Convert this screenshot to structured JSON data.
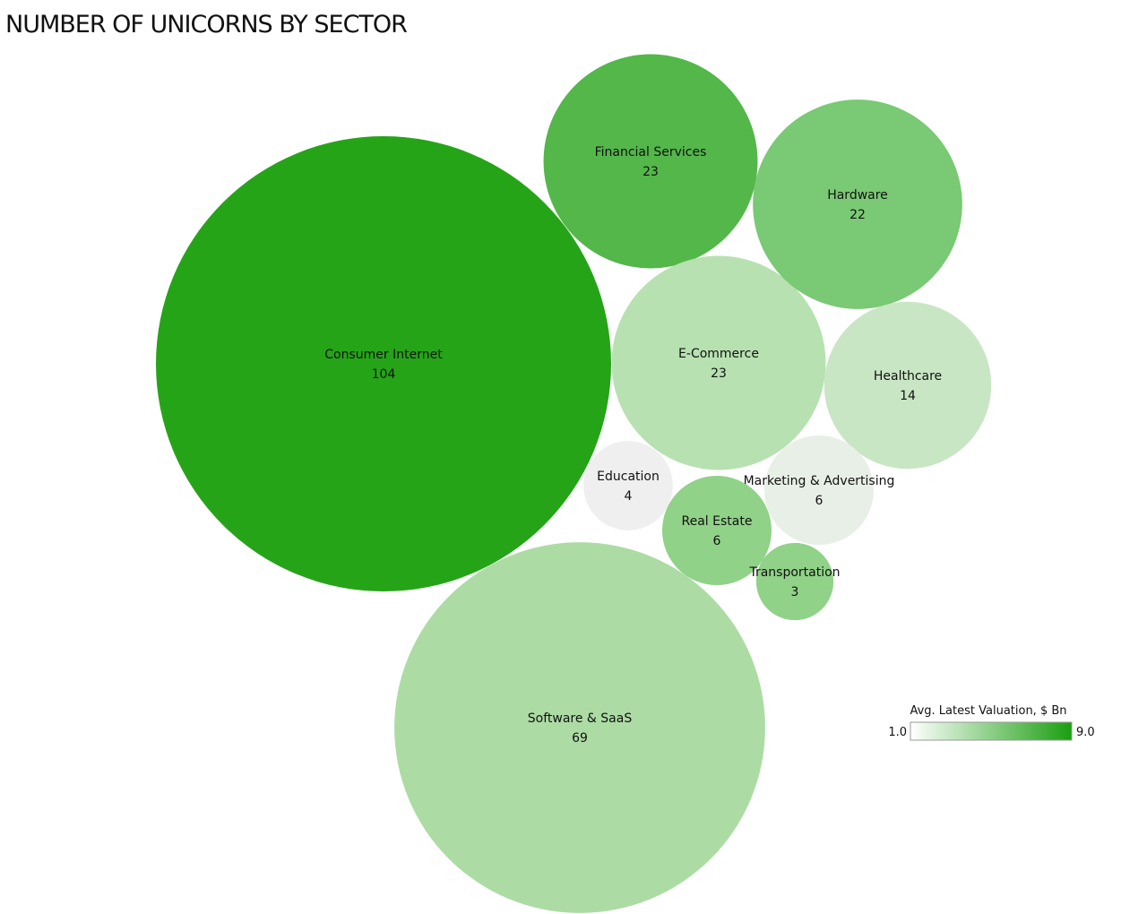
{
  "chart_data": {
    "type": "bubble",
    "title": "NUMBER OF UNICORNS BY SECTOR",
    "size_measure": "count",
    "bubbles": [
      {
        "name": "Consumer Internet",
        "count": 104,
        "color": "#25a418"
      },
      {
        "name": "Software & SaaS",
        "count": 69,
        "color": "#acdca4"
      },
      {
        "name": "Financial Services",
        "count": 23,
        "color": "#53b74a"
      },
      {
        "name": "E-Commerce",
        "count": 23,
        "color": "#b7e1b1"
      },
      {
        "name": "Hardware",
        "count": 22,
        "color": "#7ac974"
      },
      {
        "name": "Healthcare",
        "count": 14,
        "color": "#c8e6c3"
      },
      {
        "name": "Education",
        "count": 4,
        "color": "#efefef"
      },
      {
        "name": "Marketing & Advertising",
        "count": 6,
        "color": "#e8efe6"
      },
      {
        "name": "Real Estate",
        "count": 6,
        "color": "#90d288"
      },
      {
        "name": "Transportation",
        "count": 3,
        "color": "#90d288"
      }
    ],
    "legend": {
      "title": "Avg. Latest Valuation, $ Bn",
      "min_label": "1.0",
      "max_label": "9.0",
      "min_color": "#ffffff",
      "max_color": "#1a9e10",
      "placement": "bottom-right"
    }
  }
}
